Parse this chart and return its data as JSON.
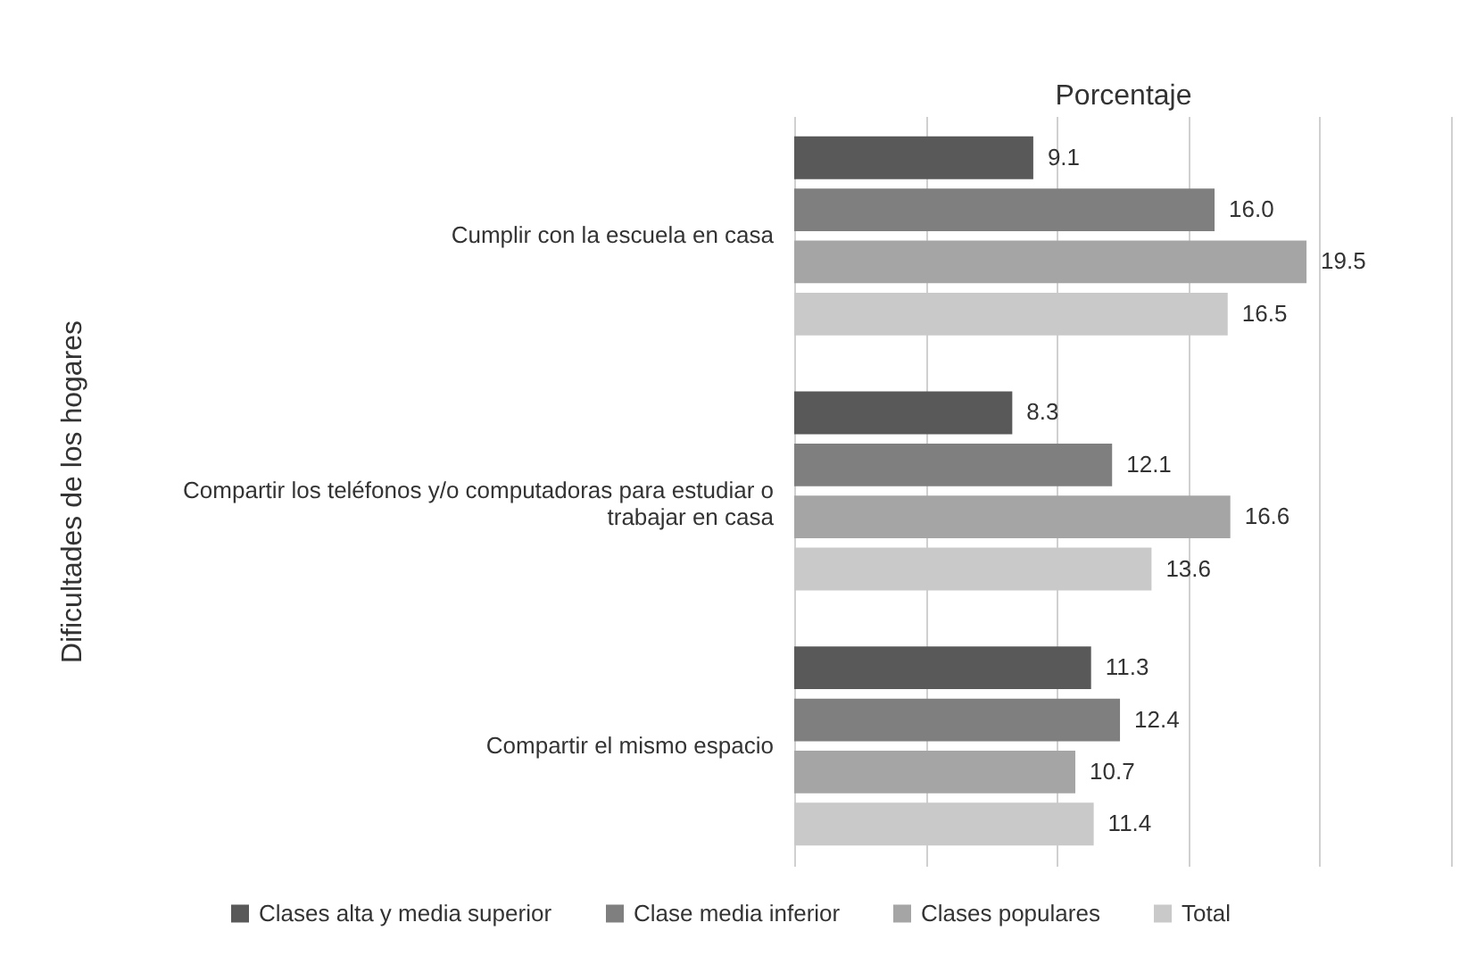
{
  "chart_data": {
    "type": "bar",
    "orientation": "horizontal",
    "xlabel": "Porcentaje",
    "ylabel": "Dificultades de los hogares",
    "categories": [
      "Cumplir con la escuela en casa",
      "Compartir los teléfonos y/o computadoras para estudiar o trabajar en casa",
      "Compartir el mismo espacio"
    ],
    "series": [
      {
        "name": "Clases alta y media superior",
        "color": "#595959",
        "values": [
          9.1,
          8.3,
          11.3
        ],
        "value_labels": [
          "9.1",
          "8.3",
          "11.3"
        ]
      },
      {
        "name": "Clase media inferior",
        "color": "#7f7f7f",
        "values": [
          16.0,
          12.1,
          12.4
        ],
        "value_labels": [
          "16.0",
          "12.1",
          "12.4"
        ]
      },
      {
        "name": "Clases populares",
        "color": "#a5a5a5",
        "values": [
          19.5,
          16.6,
          10.7
        ],
        "value_labels": [
          "19.5",
          "16.6",
          "10.7"
        ]
      },
      {
        "name": "Total",
        "color": "#c9c9c9",
        "values": [
          16.5,
          13.6,
          11.4
        ],
        "value_labels": [
          "16.5",
          "13.6",
          "11.4"
        ]
      }
    ],
    "xlim": [
      0,
      25
    ],
    "xticks": [
      {
        "value": 0,
        "label": null
      },
      {
        "value": 5,
        "label": null
      },
      {
        "value": 10,
        "label": null
      },
      {
        "value": 15,
        "label": null
      },
      {
        "value": 20,
        "label": null
      },
      {
        "value": 25,
        "label": null
      }
    ],
    "grid": "x",
    "tick_labels": "y",
    "legend": "bottom"
  }
}
